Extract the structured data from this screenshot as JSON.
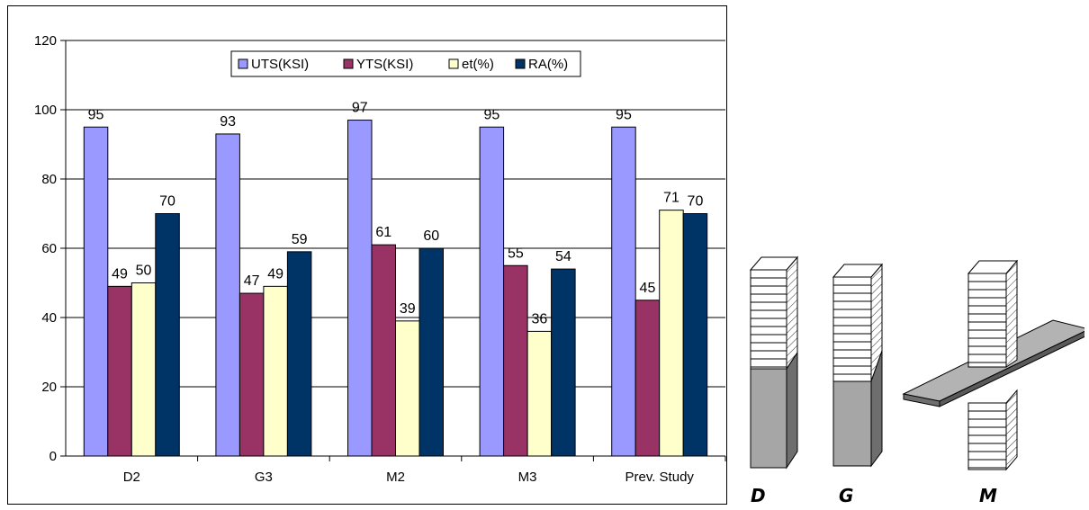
{
  "chart_data": {
    "type": "bar",
    "categories": [
      "D2",
      "G3",
      "M2",
      "M3",
      "Prev. Study"
    ],
    "series": [
      {
        "name": "UTS(KSI)",
        "color": "#9999ff",
        "values": [
          95,
          93,
          97,
          95,
          95
        ]
      },
      {
        "name": "YTS(KSI)",
        "color": "#993366",
        "values": [
          49,
          47,
          61,
          55,
          45
        ]
      },
      {
        "name": "et(%)",
        "color": "#ffffcc",
        "values": [
          50,
          49,
          39,
          36,
          71
        ]
      },
      {
        "name": "RA(%)",
        "color": "#003366",
        "values": [
          70,
          59,
          60,
          54,
          70
        ]
      }
    ],
    "ylim": [
      0,
      120
    ],
    "yticks": [
      0,
      20,
      40,
      60,
      80,
      100,
      120
    ],
    "grid": true,
    "legend_placement": "top-center",
    "data_labels": true
  },
  "diagram": {
    "labels": [
      "D",
      "G",
      "M"
    ]
  }
}
